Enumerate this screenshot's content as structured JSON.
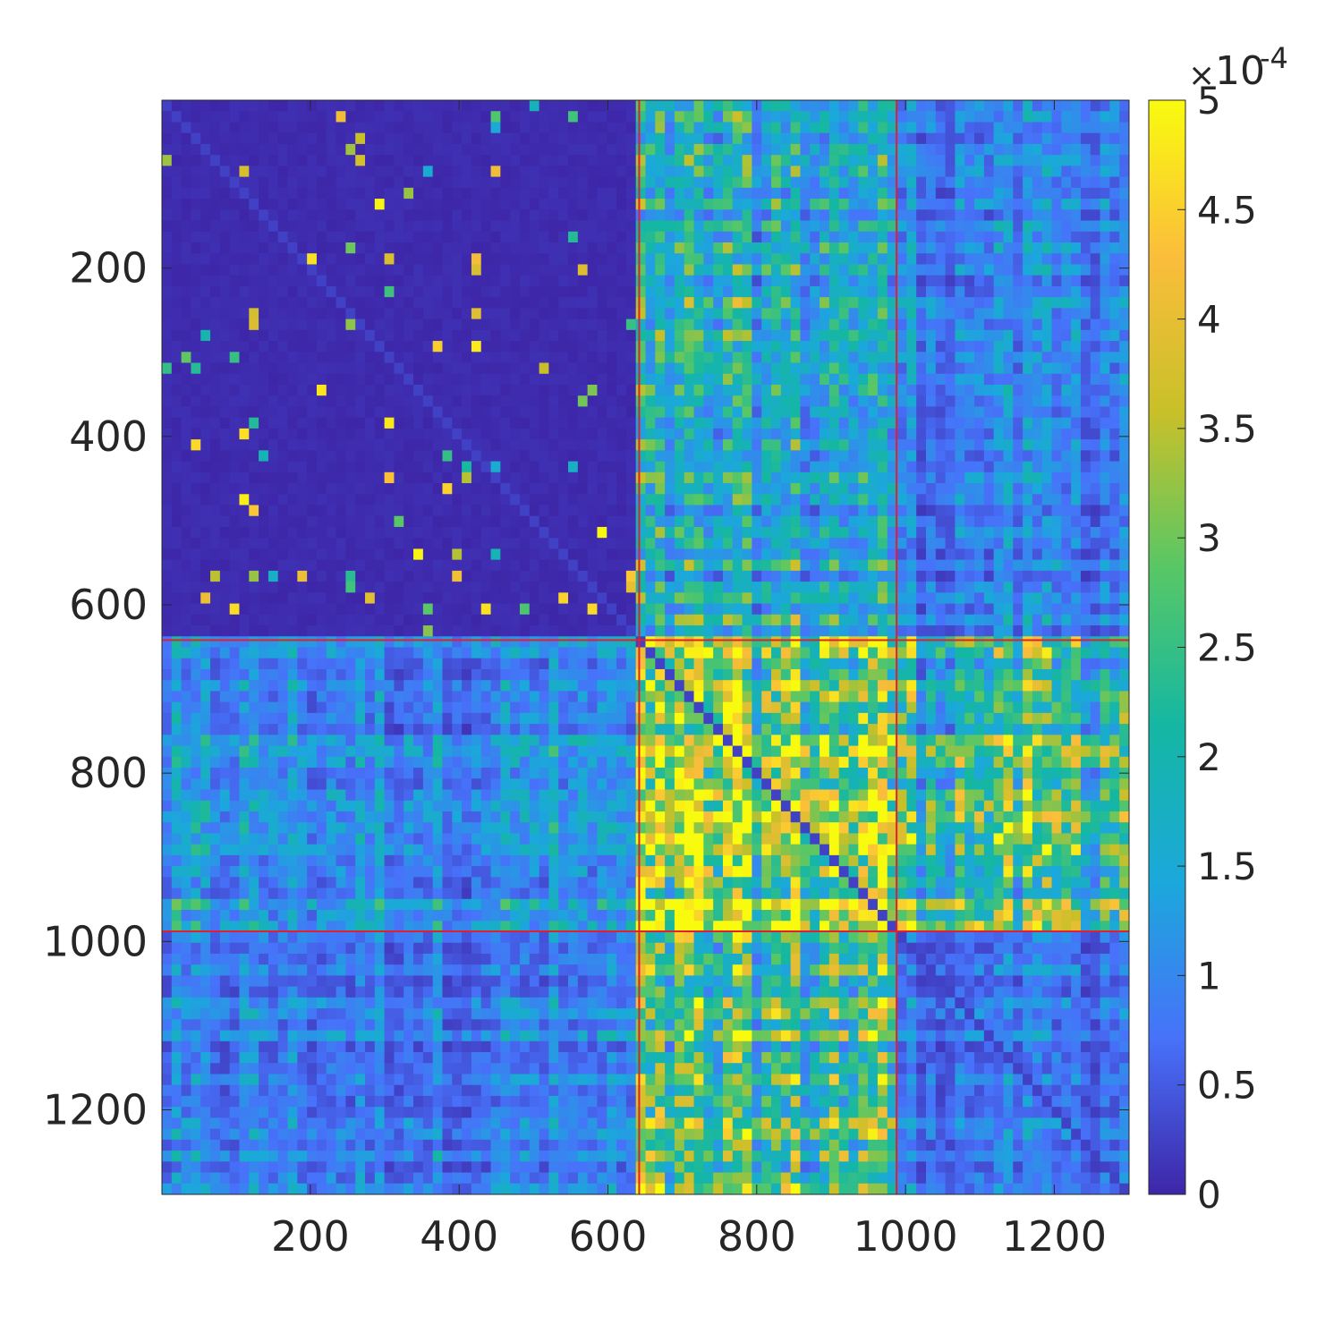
{
  "chart_data": {
    "type": "heatmap",
    "title": "",
    "xlabel": "",
    "ylabel": "",
    "matrix_size": 1300,
    "xlim": [
      1,
      1300
    ],
    "ylim": [
      1,
      1300
    ],
    "y_direction": "reversed",
    "x_ticks": [
      200,
      400,
      600,
      800,
      1000,
      1200
    ],
    "y_ticks": [
      200,
      400,
      600,
      800,
      1000,
      1200
    ],
    "x_tick_labels": [
      "200",
      "400",
      "600",
      "800",
      "1000",
      "1200"
    ],
    "y_tick_labels": [
      "200",
      "400",
      "600",
      "800",
      "1000",
      "1200"
    ],
    "colormap": "parula",
    "colormap_stops": [
      "#3e26a8",
      "#4772fa",
      "#1ba8db",
      "#15b7a3",
      "#57c766",
      "#c8c029",
      "#fbbd3b",
      "#f9fb0e"
    ],
    "clim": [
      0,
      0.0005
    ],
    "colorbar": {
      "ticks": [
        0,
        0.5,
        1,
        1.5,
        2,
        2.5,
        3,
        3.5,
        4,
        4.5,
        5
      ],
      "tick_labels": [
        "0",
        "0.5",
        "1",
        "1.5",
        "2",
        "2.5",
        "3",
        "3.5",
        "4",
        "4.5",
        "5"
      ],
      "multiplier_base": "10",
      "multiplier_exponent": "-4"
    },
    "block_boundaries": [
      642,
      988
    ],
    "boundary_color": "#e0202e",
    "blocks": [
      {
        "rows": [
          1,
          642
        ],
        "cols": [
          1,
          642
        ],
        "mean_level": 0.02
      },
      {
        "rows": [
          1,
          642
        ],
        "cols": [
          642,
          988
        ],
        "mean_level": 0.35
      },
      {
        "rows": [
          1,
          642
        ],
        "cols": [
          988,
          1300
        ],
        "mean_level": 0.2
      },
      {
        "rows": [
          642,
          988
        ],
        "cols": [
          1,
          642
        ],
        "mean_level": 0.25
      },
      {
        "rows": [
          642,
          988
        ],
        "cols": [
          642,
          988
        ],
        "mean_level": 0.75
      },
      {
        "rows": [
          642,
          988
        ],
        "cols": [
          988,
          1300
        ],
        "mean_level": 0.55
      },
      {
        "rows": [
          988,
          1300
        ],
        "cols": [
          1,
          642
        ],
        "mean_level": 0.2
      },
      {
        "rows": [
          988,
          1300
        ],
        "cols": [
          642,
          988
        ],
        "mean_level": 0.55
      },
      {
        "rows": [
          988,
          1300
        ],
        "cols": [
          988,
          1300
        ],
        "mean_level": 0.18
      }
    ],
    "grid": false,
    "legend": "colorbar-right"
  }
}
